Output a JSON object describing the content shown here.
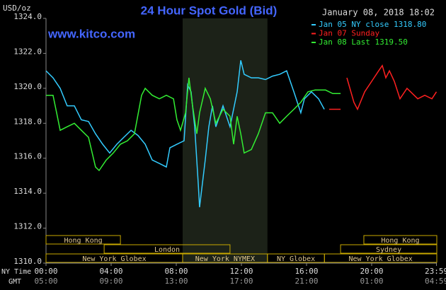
{
  "chart_data": {
    "type": "line",
    "title": "24 Hour Spot Gold (Bid)",
    "subtitle": "January 08, 2018 18:02",
    "watermark": "www.kitco.com",
    "y_label": "USD/oz",
    "x_label": "NY Time",
    "x2_label": "GMT",
    "xlim": [
      0,
      24
    ],
    "ylim": [
      1310,
      1324
    ],
    "xticks": [
      {
        "value": 0,
        "label": "00:00"
      },
      {
        "value": 4,
        "label": "04:00"
      },
      {
        "value": 8,
        "label": "08:00"
      },
      {
        "value": 12,
        "label": "12:00"
      },
      {
        "value": 16,
        "label": "16:00"
      },
      {
        "value": 20,
        "label": "20:00"
      },
      {
        "value": 23.98,
        "label": "23:59"
      }
    ],
    "x2tick_labels": [
      "05:00",
      "09:00",
      "13:00",
      "17:00",
      "21:00",
      "01:00",
      "04:59"
    ],
    "yticks": [
      {
        "value": 1310,
        "label": "1310.0"
      },
      {
        "value": 1312,
        "label": "1312.0"
      },
      {
        "value": 1314,
        "label": "1314.0"
      },
      {
        "value": 1316,
        "label": "1316.0"
      },
      {
        "value": 1318,
        "label": "1318.0"
      },
      {
        "value": 1320,
        "label": "1320.0"
      },
      {
        "value": 1322,
        "label": "1322.0"
      },
      {
        "value": 1324,
        "label": "1324.0"
      }
    ],
    "grid": false,
    "legend": "top-right",
    "sessions": [
      {
        "label": "Hong Kong",
        "start": 0,
        "end": 4.57,
        "row": 0
      },
      {
        "label": "London",
        "start": 3.57,
        "end": 11.3,
        "row": 1
      },
      {
        "label": "New York Globex",
        "start": 0,
        "end": 8.39,
        "row": 2
      },
      {
        "label": "New York NYMEX",
        "start": 8.39,
        "end": 13.6,
        "row": 2,
        "shaded": true
      },
      {
        "label": "NY Globex",
        "start": 13.6,
        "end": 17.1,
        "row": 2
      },
      {
        "label": "Hong Kong",
        "start": 19.52,
        "end": 24,
        "row": 0
      },
      {
        "label": "Sydney",
        "start": 18.09,
        "end": 24,
        "row": 1
      },
      {
        "label": "New York Globex",
        "start": 17.1,
        "end": 24,
        "row": 2
      }
    ],
    "series": [
      {
        "name": "Jan 05 NY close 1318.80",
        "color": "#33ccff",
        "x": [
          0,
          0.43,
          0.87,
          1.3,
          1.74,
          2.17,
          2.61,
          3.04,
          3.48,
          3.91,
          4.35,
          4.78,
          5.22,
          5.65,
          6.09,
          6.52,
          6.96,
          7.39,
          7.61,
          8.04,
          8.48,
          8.7,
          8.91,
          9.13,
          9.35,
          9.43,
          9.78,
          10,
          10.22,
          10.43,
          10.87,
          11.3,
          11.74,
          11.96,
          12.17,
          12.61,
          13.04,
          13.48,
          13.91,
          14.35,
          14.78,
          15.22,
          15.65,
          15.87,
          16.3,
          16.74,
          17.09
        ],
        "values": [
          1321.0,
          1320.6,
          1320.0,
          1319.0,
          1319.0,
          1318.2,
          1318.1,
          1317.4,
          1316.8,
          1316.3,
          1316.8,
          1317.2,
          1317.6,
          1317.3,
          1316.8,
          1315.9,
          1315.7,
          1315.5,
          1316.6,
          1316.8,
          1317.0,
          1320.2,
          1319.8,
          1317.8,
          1314.5,
          1313.2,
          1315.9,
          1317.8,
          1319.0,
          1317.8,
          1319.0,
          1317.8,
          1319.8,
          1321.6,
          1320.8,
          1320.6,
          1320.6,
          1320.5,
          1320.7,
          1320.8,
          1321.0,
          1319.8,
          1318.6,
          1319.4,
          1319.8,
          1319.4,
          1318.8
        ]
      },
      {
        "name": "Jan 07 Sunday",
        "color": "#ff2020",
        "x": [
          17.39,
          18.09,
          18.09,
          18.48,
          18.91,
          19.13,
          19.57,
          20,
          20.43,
          20.65,
          20.87,
          21.09,
          21.39,
          21.74,
          22.17,
          22.39,
          22.83,
          23.26,
          23.7,
          23.98
        ],
        "values": [
          1318.8,
          1318.8,
          null,
          1320.6,
          1319.2,
          1318.8,
          1319.8,
          1320.4,
          1321.0,
          1321.3,
          1320.6,
          1321.0,
          1320.4,
          1319.4,
          1320.0,
          1319.8,
          1319.4,
          1319.6,
          1319.4,
          1319.8
        ]
      },
      {
        "name": "Jan 08 Last 1319.50",
        "color": "#33ee33",
        "x": [
          0,
          0.43,
          0.65,
          0.87,
          1.3,
          1.74,
          2.17,
          2.61,
          3.04,
          3.26,
          3.7,
          4.13,
          4.57,
          5,
          5.43,
          5.87,
          6.09,
          6.52,
          6.96,
          7.39,
          7.83,
          8.04,
          8.26,
          8.57,
          8.78,
          9,
          9.26,
          9.43,
          9.78,
          10.09,
          10.43,
          10.87,
          11.3,
          11.52,
          11.74,
          11.96,
          12.17,
          12.61,
          13.04,
          13.48,
          13.91,
          14.35,
          14.78,
          15.22,
          15.65,
          16.09,
          16.52,
          16.96,
          17.17,
          17.61,
          18.09
        ],
        "values": [
          1319.6,
          1319.6,
          1318.6,
          1317.6,
          1317.8,
          1318.0,
          1317.6,
          1317.2,
          1315.5,
          1315.3,
          1315.9,
          1316.3,
          1316.8,
          1317.0,
          1317.4,
          1319.6,
          1320.0,
          1319.6,
          1319.4,
          1319.6,
          1319.4,
          1318.2,
          1317.6,
          1318.6,
          1320.6,
          1319.0,
          1317.4,
          1318.6,
          1320.0,
          1319.4,
          1318.0,
          1318.8,
          1318.4,
          1316.8,
          1318.4,
          1317.4,
          1316.3,
          1316.5,
          1317.4,
          1318.6,
          1318.6,
          1318.0,
          1318.4,
          1318.8,
          1319.2,
          1319.8,
          1319.9,
          1319.9,
          1319.9,
          1319.7,
          1319.7
        ]
      }
    ]
  }
}
